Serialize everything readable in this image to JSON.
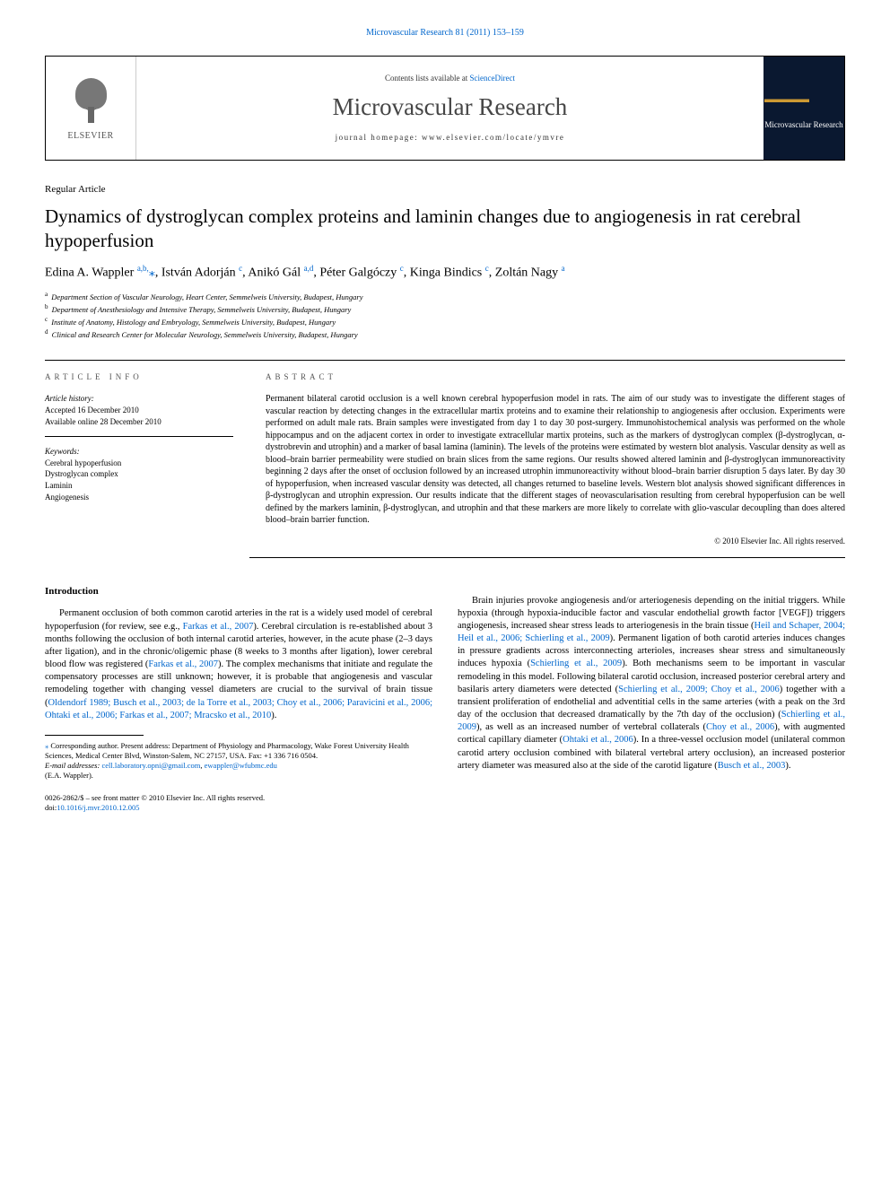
{
  "top_link": "Microvascular Research 81 (2011) 153–159",
  "header": {
    "contents_prefix": "Contents lists available at ",
    "contents_link": "ScienceDirect",
    "journal": "Microvascular Research",
    "homepage_prefix": "journal homepage: ",
    "homepage_url": "www.elsevier.com/locate/ymvre",
    "publisher": "ELSEVIER",
    "cover_label": "Microvascular Research"
  },
  "article_type": "Regular Article",
  "title": "Dynamics of dystroglycan complex proteins and laminin changes due to angiogenesis in rat cerebral hypoperfusion",
  "authors_html": "Edina A. Wappler <sup>a,b,</sup><span class='star'>⁎</span>, István Adorján <sup>c</sup>, Anikó Gál <sup>a,d</sup>, Péter Galgóczy <sup>c</sup>, Kinga Bindics <sup>c</sup>, Zoltán Nagy <sup>a</sup>",
  "affiliations": [
    "a  Department Section of Vascular Neurology, Heart Center, Semmelweis University, Budapest, Hungary",
    "b  Department of Anesthesiology and Intensive Therapy, Semmelweis University, Budapest, Hungary",
    "c  Institute of Anatomy, Histology and Embryology, Semmelweis University, Budapest, Hungary",
    "d  Clinical and Research Center for Molecular Neurology, Semmelweis University, Budapest, Hungary"
  ],
  "info": {
    "head": "ARTICLE INFO",
    "history_label": "Article history:",
    "history": [
      "Accepted 16 December 2010",
      "Available online 28 December 2010"
    ],
    "keywords_label": "Keywords:",
    "keywords": [
      "Cerebral hypoperfusion",
      "Dystroglycan complex",
      "Laminin",
      "Angiogenesis"
    ]
  },
  "abstract": {
    "head": "ABSTRACT",
    "text": "Permanent bilateral carotid occlusion is a well known cerebral hypoperfusion model in rats. The aim of our study was to investigate the different stages of vascular reaction by detecting changes in the extracellular martix proteins and to examine their relationship to angiogenesis after occlusion. Experiments were performed on adult male rats. Brain samples were investigated from day 1 to day 30 post-surgery. Immunohistochemical analysis was performed on the whole hippocampus and on the adjacent cortex in order to investigate extracellular martix proteins, such as the markers of dystroglycan complex (β-dystroglycan, α-dystrobrevin and utrophin) and a marker of basal lamina (laminin). The levels of the proteins were estimated by western blot analysis. Vascular density as well as blood–brain barrier permeability were studied on brain slices from the same regions. Our results showed altered laminin and β-dystroglycan immunoreactivity beginning 2 days after the onset of occlusion followed by an increased utrophin immunoreactivity without blood–brain barrier disruption 5 days later. By day 30 of hypoperfusion, when increased vascular density was detected, all changes returned to baseline levels. Western blot analysis showed significant differences in β-dystroglycan and utrophin expression. Our results indicate that the different stages of neovascularisation resulting from cerebral hypoperfusion can be well defined by the markers laminin, β-dystroglycan, and utrophin and that these markers are more likely to correlate with glio-vascular decoupling than does altered blood–brain barrier function.",
    "copyright": "© 2010 Elsevier Inc. All rights reserved."
  },
  "body": {
    "intro_head": "Introduction",
    "col1_p1a": "Permanent occlusion of both common carotid arteries in the rat is a widely used model of cerebral hypoperfusion (for review, see e.g., ",
    "col1_p1_link1": "Farkas et al., 2007",
    "col1_p1b": "). Cerebral circulation is re-established about 3 months following the occlusion of both internal carotid arteries, however, in the acute phase (2–3 days after ligation), and in the chronic/oligemic phase (8 weeks to 3 months after ligation), lower cerebral blood flow was registered (",
    "col1_p1_link2": "Farkas et al., 2007",
    "col1_p1c": "). The complex mechanisms that initiate and regulate the compensatory processes are still unknown; however, it is probable that angiogenesis and vascular remodeling together with changing vessel diameters are crucial to the survival of brain tissue (",
    "col1_p1_link3": "Oldendorf 1989; Busch et al., 2003; de la Torre et al., 2003; Choy et al., 2006; Paravicini et al., 2006; Ohtaki et al., 2006; Farkas et al., 2007; Mracsko et al., 2010",
    "col1_p1d": ").",
    "col2_p1a": "Brain injuries provoke angiogenesis and/or arteriogenesis depending on the initial triggers. While hypoxia (through hypoxia-inducible factor and vascular endothelial growth factor [VEGF]) triggers angiogenesis, increased shear stress leads to arteriogenesis in the brain tissue (",
    "col2_p1_link1": "Heil and Schaper, 2004; Heil et al., 2006; Schierling et al., 2009",
    "col2_p1b": "). Permanent ligation of both carotid arteries induces changes in pressure gradients across interconnecting arterioles, increases shear stress and simultaneously induces hypoxia (",
    "col2_p1_link2": "Schierling et al., 2009",
    "col2_p1c": "). Both mechanisms seem to be important in vascular remodeling in this model. Following bilateral carotid occlusion, increased posterior cerebral artery and basilaris artery diameters were detected (",
    "col2_p1_link3": "Schierling et al., 2009; Choy et al., 2006",
    "col2_p1d": ") together with a transient proliferation of endothelial and adventitial cells in the same arteries (with a peak on the 3rd day of the occlusion that decreased dramatically by the 7th day of the occlusion) (",
    "col2_p1_link4": "Schierling et al., 2009",
    "col2_p1e": "), as well as an increased number of vertebral collaterals (",
    "col2_p1_link5": "Choy et al., 2006",
    "col2_p1f": "), with augmented cortical capillary diameter (",
    "col2_p1_link6": "Ohtaki et al., 2006",
    "col2_p1g": "). In a three-vessel occlusion model (unilateral common carotid artery occlusion combined with bilateral vertebral artery occlusion), an increased posterior artery diameter was measured also at the side of the carotid ligature (",
    "col2_p1_link7": "Busch et al., 2003",
    "col2_p1h": ")."
  },
  "footnotes": {
    "corr_star": "⁎",
    "corr_text": " Corresponding author. Present address: Department of Physiology and Pharmacology, Wake Forest University Health Sciences, Medical Center Blvd, Winston-Salem, NC 27157, USA. Fax: +1 336 716 0504.",
    "email_label": "E-mail addresses: ",
    "email1": "cell.laboratory.opni@gmail.com",
    "email_sep": ", ",
    "email2": "ewappler@wfubmc.edu",
    "email_suffix": " (E.A. Wappler).",
    "issn": "0026-2862/$ – see front matter © 2010 Elsevier Inc. All rights reserved.",
    "doi_prefix": "doi:",
    "doi": "10.1016/j.mvr.2010.12.005"
  }
}
